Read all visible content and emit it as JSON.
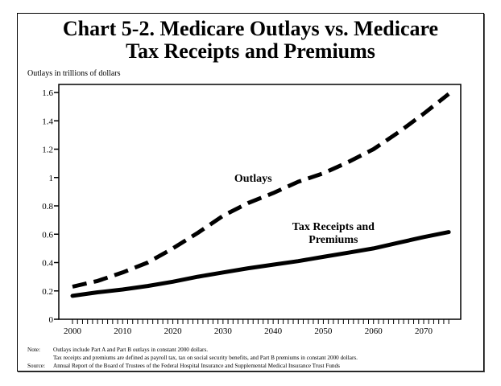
{
  "chart_data": {
    "type": "line",
    "title": "Chart 5-2.  Medicare Outlays vs. Medicare Tax Receipts and Premiums",
    "title_lines": [
      "Chart 5-2.  Medicare Outlays vs. Medicare",
      "Tax Receipts and Premiums"
    ],
    "ylabel": "Outlays in trillions of dollars",
    "xlabel": "",
    "xlim": [
      1997,
      2078
    ],
    "ylim": [
      0,
      1.6
    ],
    "grid": false,
    "yticks": [
      0,
      0.2,
      0.4,
      0.6,
      0.8,
      1,
      1.2,
      1.4,
      1.6
    ],
    "ytick_labels": [
      "0",
      "0.2",
      "0.4",
      "0.6",
      "0.8",
      "1",
      "1.2",
      "1.4",
      "1.6"
    ],
    "xticks": [
      2000,
      2010,
      2020,
      2030,
      2040,
      2050,
      2060,
      2070
    ],
    "xtick_labels": [
      "2000",
      "2010",
      "2020",
      "2030",
      "2040",
      "2050",
      "2060",
      "2070"
    ],
    "minor_xticks_from": 2000,
    "minor_xticks_to": 2075,
    "x": [
      2000,
      2005,
      2010,
      2015,
      2020,
      2025,
      2030,
      2035,
      2040,
      2045,
      2050,
      2055,
      2060,
      2065,
      2070,
      2075
    ],
    "series": [
      {
        "name": "Outlays",
        "style": "dashed",
        "values": [
          0.23,
          0.27,
          0.33,
          0.4,
          0.5,
          0.61,
          0.73,
          0.82,
          0.89,
          0.97,
          1.03,
          1.11,
          1.2,
          1.32,
          1.45,
          1.59
        ]
      },
      {
        "name": "Tax Receipts and Premiums",
        "style": "solid",
        "values": [
          0.165,
          0.19,
          0.21,
          0.235,
          0.265,
          0.3,
          0.33,
          0.36,
          0.385,
          0.41,
          0.44,
          0.47,
          0.5,
          0.54,
          0.58,
          0.615
        ]
      }
    ],
    "annotations": [
      {
        "text_lines": [
          "Outlays"
        ],
        "series": "Outlays",
        "x": 2036,
        "y": 0.97
      },
      {
        "text_lines": [
          "Tax Receipts and",
          "Premiums"
        ],
        "series": "Tax Receipts and Premiums",
        "x": 2052,
        "y": 0.63
      }
    ]
  },
  "notes": {
    "note_label": "Note:",
    "note_line1": "Outlays include Part A and Part B outlays in constant 2000 dollars.",
    "note_line2": "Tax receipts and premiums are defined as payroll tax, tax on social security benefits, and Part B premiums in constant 2000 dollars.",
    "source_label": "Source:",
    "source_text": "Annual Report of the Board of Trustees of the Federal Hospital  Insurance and Supplemental Medical Insurance Trust Funds"
  }
}
